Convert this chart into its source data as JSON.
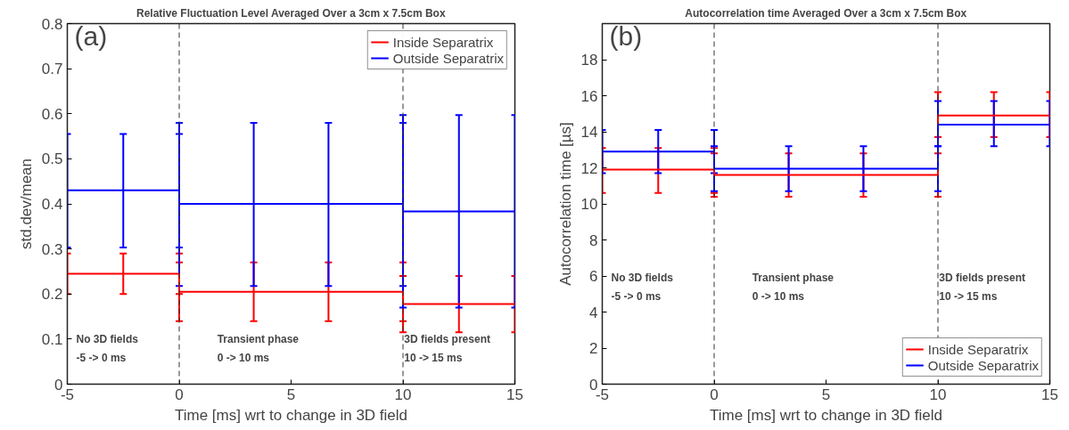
{
  "chart_data": [
    {
      "type": "line",
      "title": "Relative Fluctuation Level Averaged Over a 3cm x 7.5cm Box",
      "xlabel": "Time [ms] wrt to change in 3D field",
      "ylabel": "std.dev/mean",
      "xlim": [
        -5,
        15
      ],
      "xticks": [
        -5,
        0,
        5,
        10,
        15
      ],
      "ylim": [
        0,
        0.8
      ],
      "yticks": [
        0,
        0.1,
        0.2,
        0.3,
        0.4,
        0.5,
        0.6,
        0.7,
        0.8
      ],
      "grid": false,
      "legend": "top right",
      "marker": "none",
      "line_style": "solid",
      "annotations": [
        "(a)",
        "No 3D fields\n-5 -> 0 ms",
        "Transient phase\n0 -> 10 ms",
        "3D fields present\n10 -> 15 ms"
      ],
      "ref_lines": [
        {
          "axis": "x",
          "value": 0,
          "color": "#333333",
          "line_style": "dashed"
        },
        {
          "axis": "x",
          "value": 10,
          "color": "#333333",
          "line_style": "dashed"
        }
      ],
      "series": [
        {
          "name": "Inside Separatrix",
          "color": "#ff0000",
          "x": [
            -5,
            -2.5,
            0,
            0,
            3.33,
            6.67,
            10,
            10,
            12.5,
            15
          ],
          "values": [
            0.245,
            0.245,
            0.245,
            0.205,
            0.205,
            0.205,
            0.205,
            0.178,
            0.178,
            0.178
          ],
          "errors": [
            [
              0.2,
              0.29
            ],
            [
              0.2,
              0.29
            ],
            [
              0.2,
              0.29
            ],
            [
              0.14,
              0.27
            ],
            [
              0.14,
              0.27
            ],
            [
              0.14,
              0.27
            ],
            [
              0.14,
              0.27
            ],
            [
              0.115,
              0.24
            ],
            [
              0.115,
              0.24
            ],
            [
              0.115,
              0.24
            ]
          ]
        },
        {
          "name": "Outside Separatrix",
          "color": "#0000ff",
          "x": [
            -5,
            -2.5,
            0,
            0,
            3.33,
            6.67,
            10,
            10,
            12.5,
            15
          ],
          "values": [
            0.43,
            0.43,
            0.43,
            0.4,
            0.4,
            0.4,
            0.4,
            0.383,
            0.383,
            0.383
          ],
          "errors": [
            [
              0.303,
              0.555
            ],
            [
              0.303,
              0.555
            ],
            [
              0.303,
              0.555
            ],
            [
              0.218,
              0.58
            ],
            [
              0.218,
              0.58
            ],
            [
              0.218,
              0.58
            ],
            [
              0.218,
              0.58
            ],
            [
              0.17,
              0.597
            ],
            [
              0.17,
              0.597
            ],
            [
              0.17,
              0.597
            ]
          ]
        }
      ]
    },
    {
      "type": "line",
      "title": "Autocorrelation time Averaged Over a 3cm x 7.5cm Box",
      "xlabel": "Time [ms] wrt to change in 3D field",
      "ylabel": "Autocorrelation time [µs]",
      "xlim": [
        -5,
        15
      ],
      "xticks": [
        -5,
        0,
        5,
        10,
        15
      ],
      "ylim": [
        0,
        20
      ],
      "yticks": [
        0,
        2,
        4,
        6,
        8,
        10,
        12,
        14,
        16,
        18
      ],
      "grid": false,
      "legend": "bottom right",
      "marker": "none",
      "line_style": "solid",
      "annotations": [
        "(b)",
        "No 3D fields\n-5 -> 0 ms",
        "Transient phase\n0 -> 10 ms",
        "3D fields present\n10 -> 15 ms"
      ],
      "ref_lines": [
        {
          "axis": "x",
          "value": 0,
          "color": "#333333",
          "line_style": "dashed"
        },
        {
          "axis": "x",
          "value": 10,
          "color": "#333333",
          "line_style": "dashed"
        }
      ],
      "series": [
        {
          "name": "Inside Separatrix",
          "color": "#ff0000",
          "x": [
            -5,
            -2.5,
            0,
            0,
            3.33,
            6.67,
            10,
            10,
            12.5,
            15
          ],
          "values": [
            11.9,
            11.9,
            11.9,
            11.6,
            11.6,
            11.6,
            11.6,
            14.9,
            14.9,
            14.9
          ],
          "errors": [
            [
              10.6,
              13.1
            ],
            [
              10.6,
              13.1
            ],
            [
              10.6,
              13.1
            ],
            [
              10.4,
              12.8
            ],
            [
              10.4,
              12.8
            ],
            [
              10.4,
              12.8
            ],
            [
              10.4,
              12.8
            ],
            [
              13.7,
              16.2
            ],
            [
              13.7,
              16.2
            ],
            [
              13.7,
              16.2
            ]
          ]
        },
        {
          "name": "Outside Separatrix",
          "color": "#0000ff",
          "x": [
            -5,
            -2.5,
            0,
            0,
            3.33,
            6.67,
            10,
            10,
            12.5,
            15
          ],
          "values": [
            12.9,
            12.9,
            12.9,
            11.95,
            11.95,
            11.95,
            11.95,
            14.4,
            14.4,
            14.4
          ],
          "errors": [
            [
              11.7,
              14.1
            ],
            [
              11.7,
              14.1
            ],
            [
              11.7,
              14.1
            ],
            [
              10.7,
              13.2
            ],
            [
              10.7,
              13.2
            ],
            [
              10.7,
              13.2
            ],
            [
              10.7,
              13.2
            ],
            [
              13.2,
              15.7
            ],
            [
              13.2,
              15.7
            ],
            [
              13.2,
              15.7
            ]
          ]
        }
      ]
    }
  ]
}
